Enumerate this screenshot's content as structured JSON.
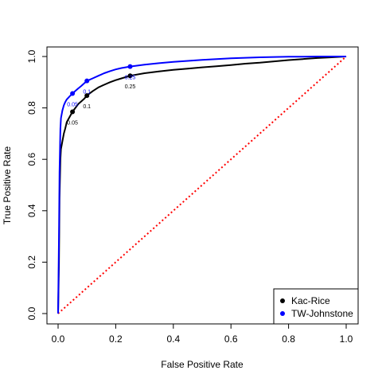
{
  "chart_data": {
    "type": "line",
    "title": "",
    "xlabel": "False Positive Rate",
    "ylabel": "True Positive Rate",
    "xlim": [
      0,
      1
    ],
    "ylim": [
      0,
      1
    ],
    "x_ticks": [
      "0.0",
      "0.2",
      "0.4",
      "0.6",
      "0.8",
      "1.0"
    ],
    "y_ticks": [
      "0.0",
      "0.2",
      "0.4",
      "0.6",
      "0.8",
      "1.0"
    ],
    "grid": false,
    "legend_position": "bottom-right",
    "series": [
      {
        "name": "Kac-Rice",
        "color": "#000000",
        "x": [
          0,
          0.003,
          0.005,
          0.008,
          0.01,
          0.015,
          0.02,
          0.025,
          0.03,
          0.04,
          0.05,
          0.06,
          0.07,
          0.08,
          0.09,
          0.1,
          0.12,
          0.14,
          0.16,
          0.18,
          0.2,
          0.22,
          0.25,
          0.3,
          0.35,
          0.4,
          0.45,
          0.5,
          0.55,
          0.6,
          0.65,
          0.7,
          0.75,
          0.8,
          0.85,
          0.9,
          0.95,
          1.0
        ],
        "y": [
          0,
          0.2,
          0.45,
          0.6,
          0.64,
          0.67,
          0.7,
          0.72,
          0.745,
          0.765,
          0.785,
          0.8,
          0.815,
          0.825,
          0.835,
          0.848,
          0.865,
          0.88,
          0.89,
          0.9,
          0.908,
          0.915,
          0.925,
          0.935,
          0.942,
          0.948,
          0.953,
          0.958,
          0.962,
          0.967,
          0.972,
          0.976,
          0.981,
          0.986,
          0.99,
          0.994,
          0.997,
          1.0
        ]
      },
      {
        "name": "TW-Johnstone",
        "color": "#0000ff",
        "x": [
          0,
          0.003,
          0.005,
          0.008,
          0.01,
          0.015,
          0.02,
          0.025,
          0.03,
          0.04,
          0.05,
          0.06,
          0.07,
          0.08,
          0.09,
          0.1,
          0.12,
          0.14,
          0.16,
          0.18,
          0.2,
          0.22,
          0.25,
          0.3,
          0.35,
          0.4,
          0.45,
          0.5,
          0.55,
          0.6,
          0.65,
          0.7,
          0.75,
          0.8,
          0.85,
          0.9,
          0.95,
          1.0
        ],
        "y": [
          0,
          0.3,
          0.55,
          0.72,
          0.76,
          0.79,
          0.81,
          0.823,
          0.833,
          0.845,
          0.856,
          0.866,
          0.876,
          0.885,
          0.895,
          0.905,
          0.915,
          0.925,
          0.935,
          0.943,
          0.95,
          0.955,
          0.961,
          0.968,
          0.974,
          0.979,
          0.983,
          0.987,
          0.99,
          0.993,
          0.995,
          0.997,
          0.998,
          0.999,
          0.999,
          1.0,
          1.0,
          1.0
        ]
      },
      {
        "name": "",
        "color": "#ff0000",
        "style": "dotted",
        "x": [
          0,
          1
        ],
        "y": [
          0,
          1
        ]
      }
    ],
    "markers": [
      {
        "series": 0,
        "x": 0.05,
        "y": 0.785,
        "label": "0.05"
      },
      {
        "series": 0,
        "x": 0.1,
        "y": 0.848,
        "label": "0.1"
      },
      {
        "series": 0,
        "x": 0.25,
        "y": 0.925,
        "label": "0.25"
      },
      {
        "series": 1,
        "x": 0.05,
        "y": 0.856,
        "label": "0.05"
      },
      {
        "series": 1,
        "x": 0.1,
        "y": 0.905,
        "label": "0.1"
      },
      {
        "series": 1,
        "x": 0.25,
        "y": 0.961,
        "label": "0.25"
      }
    ],
    "legend": [
      {
        "label": "Kac-Rice",
        "color": "#000000"
      },
      {
        "label": "TW-Johnstone",
        "color": "#0000ff"
      }
    ]
  }
}
